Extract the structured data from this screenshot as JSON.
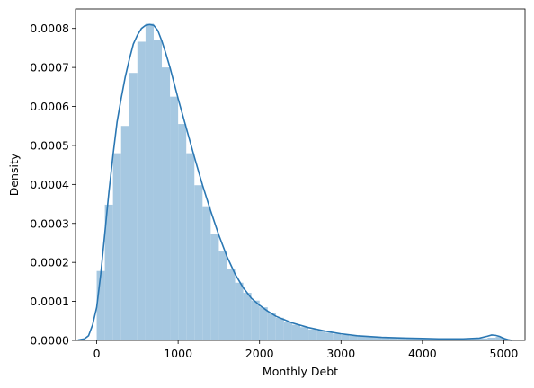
{
  "chart_data": {
    "type": "bar",
    "title": "",
    "xlabel": "Monthly Debt",
    "ylabel": "Density",
    "xlim": [
      -260,
      5260
    ],
    "ylim": [
      0,
      0.00085
    ],
    "grid": false,
    "x_ticks": [
      0,
      1000,
      2000,
      3000,
      4000,
      5000
    ],
    "x_tick_labels": [
      "0",
      "1000",
      "2000",
      "3000",
      "4000",
      "5000"
    ],
    "y_ticks": [
      0,
      0.0001,
      0.0002,
      0.0003,
      0.0004,
      0.0005,
      0.0006,
      0.0007,
      0.0008
    ],
    "y_tick_labels": [
      "0.0000",
      "0.0001",
      "0.0002",
      "0.0003",
      "0.0004",
      "0.0005",
      "0.0006",
      "0.0007",
      "0.0008"
    ],
    "colors": {
      "bars": "#a6c8e1",
      "kde": "#2a77b3"
    },
    "histogram": {
      "bin_edges": [
        0,
        100,
        200,
        300,
        400,
        500,
        600,
        700,
        800,
        900,
        1000,
        1100,
        1200,
        1300,
        1400,
        1500,
        1600,
        1700,
        1800,
        1900,
        2000,
        2100,
        2200,
        2300,
        2400,
        2500,
        2600,
        2700,
        2800,
        2900,
        3000,
        3100,
        3200,
        3300,
        3400,
        3500,
        3600,
        3700,
        3800,
        3900,
        4000,
        4100,
        4200,
        4300,
        4400,
        4500,
        4600,
        4700,
        4800,
        4900,
        5000
      ],
      "densities": [
        0.000178,
        0.000348,
        0.00048,
        0.00055,
        0.000686,
        0.000766,
        0.000812,
        0.00077,
        0.0007,
        0.000625,
        0.000555,
        0.00048,
        0.000398,
        0.000344,
        0.000272,
        0.000228,
        0.000182,
        0.000148,
        0.000122,
        0.000102,
        8.5e-05,
        7e-05,
        5.8e-05,
        4.8e-05,
        4e-05,
        3.4e-05,
        2.8e-05,
        2.4e-05,
        2e-05,
        1.7e-05,
        1.4e-05,
        1.2e-05,
        1.1e-05,
        1e-05,
        9e-06,
        8e-06,
        7e-06,
        6e-06,
        6e-06,
        5e-06,
        5e-06,
        5e-06,
        5e-06,
        5e-06,
        5e-06,
        5e-06,
        5e-06,
        5e-06,
        7e-06,
        9e-06
      ]
    },
    "kde": {
      "x": [
        -230,
        -150,
        -100,
        -50,
        0,
        50,
        100,
        150,
        200,
        250,
        300,
        350,
        400,
        450,
        500,
        550,
        600,
        650,
        700,
        750,
        800,
        850,
        900,
        950,
        1000,
        1100,
        1200,
        1300,
        1400,
        1500,
        1600,
        1700,
        1800,
        1900,
        2000,
        2100,
        2200,
        2400,
        2600,
        2800,
        3000,
        3200,
        3500,
        3800,
        4000,
        4200,
        4500,
        4700,
        4800,
        4850,
        4900,
        4950,
        5000,
        5050,
        5100
      ],
      "y": [
        1e-06,
        4e-06,
        1.2e-05,
        4e-05,
        8.5e-05,
        0.00017,
        0.000275,
        0.00038,
        0.000475,
        0.00056,
        0.00062,
        0.000675,
        0.00072,
        0.00076,
        0.000783,
        0.0008,
        0.000808,
        0.00081,
        0.000808,
        0.000795,
        0.000768,
        0.000735,
        0.0007,
        0.00066,
        0.00062,
        0.000545,
        0.00047,
        0.000398,
        0.000332,
        0.00027,
        0.000215,
        0.00017,
        0.000135,
        0.000108,
        9e-05,
        7.5e-05,
        6.2e-05,
        4.5e-05,
        3.3e-05,
        2.4e-05,
        1.7e-05,
        1.2e-05,
        8e-06,
        6e-06,
        5e-06,
        4e-06,
        4e-06,
        6e-06,
        1.1e-05,
        1.4e-05,
        1.3e-05,
        1e-05,
        5e-06,
        2e-06,
        0.0
      ]
    }
  }
}
